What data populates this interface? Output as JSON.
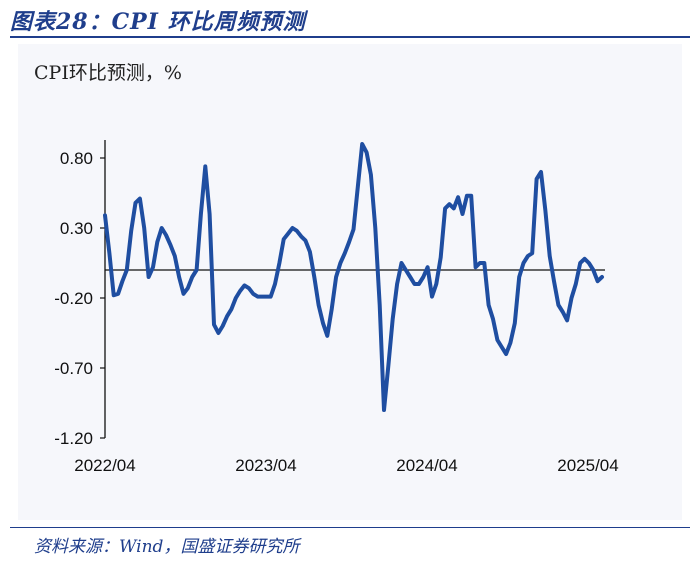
{
  "title": "图表28：CPI 环比周频预测",
  "source": "资料来源：Wind，国盛证券研究所",
  "colors": {
    "accent": "#1f3e8c",
    "line": "#1f4ea1",
    "axis": "#111111"
  },
  "chart_data": {
    "type": "line",
    "unit_label": "CPI环比预测，%",
    "ylim": [
      -1.2,
      0.8
    ],
    "yticks": [
      "0.80",
      "0.30",
      "-0.20",
      "-0.70",
      "-1.20"
    ],
    "ytick_values": [
      0.8,
      0.3,
      -0.2,
      -0.7,
      -1.2
    ],
    "xticks": [
      "2022/04",
      "2023/04",
      "2024/04",
      "2025/04"
    ],
    "x_start": "2022/04",
    "x_end": "2025/05",
    "grid": false,
    "series": [
      {
        "values": [
          0.39,
          0.12,
          -0.18,
          -0.17,
          -0.08,
          0.0,
          0.28,
          0.48,
          0.51,
          0.3,
          -0.05,
          0.02,
          0.2,
          0.3,
          0.25,
          0.18,
          0.1,
          -0.05,
          -0.17,
          -0.13,
          -0.05,
          0.0,
          0.4,
          0.74,
          0.4,
          -0.39,
          -0.45,
          -0.4,
          -0.33,
          -0.28,
          -0.2,
          -0.15,
          -0.11,
          -0.13,
          -0.17,
          -0.19,
          -0.19,
          -0.19,
          -0.19,
          -0.1,
          0.05,
          0.22,
          0.26,
          0.3,
          0.28,
          0.24,
          0.21,
          0.13,
          -0.05,
          -0.25,
          -0.38,
          -0.47,
          -0.28,
          -0.05,
          0.05,
          0.12,
          0.2,
          0.29,
          0.6,
          0.9,
          0.84,
          0.68,
          0.3,
          -0.25,
          -1.0,
          -0.68,
          -0.35,
          -0.1,
          0.05,
          0.0,
          -0.05,
          -0.1,
          -0.1,
          -0.05,
          0.02,
          -0.19,
          -0.1,
          0.09,
          0.44,
          0.47,
          0.44,
          0.52,
          0.4,
          0.53,
          0.53,
          0.02,
          0.05,
          0.05,
          -0.25,
          -0.35,
          -0.5,
          -0.55,
          -0.6,
          -0.52,
          -0.38,
          -0.05,
          0.05,
          0.1,
          0.12,
          0.65,
          0.7,
          0.43,
          0.1,
          -0.08,
          -0.25,
          -0.3,
          -0.36,
          -0.2,
          -0.1,
          0.05,
          0.08,
          0.05,
          0.0,
          -0.08,
          -0.05
        ]
      }
    ]
  }
}
